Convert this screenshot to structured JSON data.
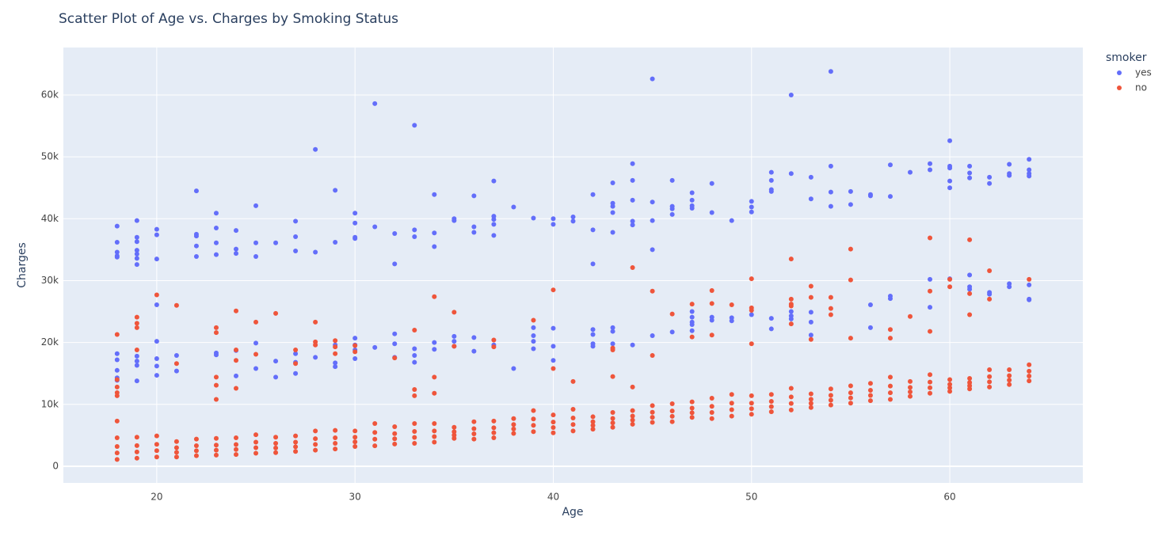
{
  "chart_data": {
    "type": "scatter",
    "title": "Scatter Plot of Age vs. Charges by Smoking Status",
    "x_label": "Age",
    "y_label": "Charges",
    "legend_title": "smoker",
    "legend_position": "right",
    "grid": true,
    "xlim": [
      15.29,
      66.71
    ],
    "xticks": [
      20,
      30,
      40,
      50,
      60
    ],
    "ylim": [
      -2690,
      67670
    ],
    "yticks": [
      0,
      {
        "value": 10000,
        "label": "10k"
      },
      {
        "value": 20000,
        "label": "20k"
      },
      {
        "value": 30000,
        "label": "30k"
      },
      {
        "value": 40000,
        "label": "40k"
      },
      {
        "value": 50000,
        "label": "50k"
      },
      {
        "value": 60000,
        "label": "60k"
      }
    ],
    "series": [
      {
        "name": "yes",
        "color": "#636efa",
        "x": [
          18,
          18,
          18,
          18,
          18,
          18,
          18,
          18,
          18,
          18,
          19,
          19,
          19,
          19,
          19,
          19,
          19,
          19,
          19,
          19,
          19,
          20,
          20,
          20,
          20,
          20,
          20,
          20,
          20,
          21,
          21,
          22,
          22,
          22,
          22,
          22,
          23,
          23,
          23,
          23,
          23,
          23,
          24,
          24,
          24,
          24,
          24,
          25,
          25,
          25,
          25,
          25,
          26,
          26,
          26,
          27,
          27,
          27,
          27,
          27,
          27,
          28,
          28,
          28,
          29,
          29,
          29,
          29,
          29,
          30,
          30,
          30,
          30,
          30,
          30,
          30,
          30,
          31,
          31,
          31,
          32,
          32,
          32,
          32,
          32,
          33,
          33,
          33,
          33,
          33,
          33,
          34,
          34,
          34,
          34,
          34,
          35,
          35,
          35,
          35,
          35,
          36,
          36,
          36,
          36,
          36,
          37,
          37,
          37,
          37,
          37,
          37,
          38,
          38,
          39,
          39,
          39,
          39,
          39,
          40,
          40,
          40,
          40,
          40,
          41,
          41,
          42,
          42,
          42,
          42,
          42,
          42,
          42,
          43,
          43,
          43,
          43,
          43,
          43,
          43,
          43,
          44,
          44,
          44,
          44,
          44,
          44,
          45,
          45,
          45,
          45,
          45,
          46,
          46,
          46,
          46,
          46,
          47,
          47,
          47,
          47,
          47,
          47,
          47,
          47,
          47,
          48,
          48,
          48,
          48,
          49,
          49,
          49,
          50,
          50,
          50,
          50,
          51,
          51,
          51,
          51,
          51,
          51,
          52,
          52,
          52,
          52,
          52,
          53,
          53,
          53,
          53,
          53,
          54,
          54,
          54,
          54,
          55,
          55,
          56,
          56,
          56,
          56,
          57,
          57,
          57,
          57,
          58,
          59,
          59,
          59,
          59,
          60,
          60,
          60,
          60,
          60,
          60,
          61,
          61,
          61,
          61,
          61,
          61,
          62,
          62,
          62,
          62,
          63,
          63,
          63,
          63,
          63,
          64,
          64,
          64,
          64,
          64,
          64,
          64
        ],
        "values": [
          38800,
          36200,
          34600,
          34000,
          33800,
          18200,
          17200,
          15500,
          14300,
          13900,
          39700,
          37000,
          36300,
          34900,
          34300,
          33600,
          32600,
          17800,
          17000,
          16300,
          13800,
          38300,
          37400,
          33500,
          26100,
          20200,
          17400,
          16200,
          14700,
          17900,
          15400,
          44500,
          37500,
          37200,
          35600,
          33900,
          40900,
          38500,
          36100,
          34200,
          18300,
          18000,
          38100,
          35100,
          34400,
          18700,
          14600,
          42100,
          36100,
          33900,
          19900,
          15800,
          36100,
          17000,
          14400,
          39600,
          37100,
          34800,
          18200,
          16800,
          15000,
          51200,
          34600,
          17600,
          44600,
          36200,
          19600,
          16700,
          16100,
          40900,
          39300,
          37000,
          36800,
          20700,
          19600,
          18800,
          17400,
          58600,
          38700,
          19200,
          37600,
          32700,
          21400,
          19800,
          17600,
          55100,
          38200,
          37100,
          19000,
          17900,
          16800,
          43900,
          37700,
          35500,
          20000,
          18900,
          40000,
          39700,
          21000,
          20200,
          19400,
          43700,
          38700,
          37800,
          20800,
          18600,
          46100,
          40400,
          39900,
          39100,
          37300,
          19600,
          41900,
          15800,
          40100,
          22400,
          21100,
          20200,
          19000,
          40000,
          39100,
          22300,
          19400,
          17100,
          40300,
          39600,
          43900,
          38200,
          32700,
          22100,
          21300,
          19800,
          19400,
          45800,
          42500,
          42000,
          41000,
          37800,
          22400,
          21800,
          19800,
          48900,
          46200,
          43000,
          39600,
          39000,
          19600,
          62600,
          42700,
          39700,
          35000,
          21100,
          46200,
          42000,
          41600,
          40700,
          21700,
          44200,
          43000,
          42100,
          41700,
          25000,
          24100,
          23300,
          22900,
          21900,
          45700,
          41000,
          24100,
          23600,
          39700,
          24000,
          23500,
          42800,
          41900,
          41100,
          24500,
          47500,
          46200,
          44700,
          44400,
          23900,
          22200,
          60000,
          47300,
          25000,
          24300,
          23800,
          46700,
          43200,
          24900,
          23300,
          21200,
          63800,
          48500,
          44300,
          42000,
          44400,
          42300,
          43900,
          43700,
          26100,
          22400,
          48700,
          43600,
          27500,
          27100,
          47500,
          48900,
          47900,
          30200,
          25700,
          52600,
          48500,
          48200,
          46100,
          45000,
          30300,
          48500,
          47400,
          46600,
          30900,
          29000,
          28600,
          46700,
          45700,
          28100,
          27800,
          48800,
          47300,
          47000,
          29500,
          29000,
          49600,
          47900,
          47300,
          46900,
          29300,
          27000,
          26900
        ]
      },
      {
        "name": "no",
        "color": "#ef553b",
        "x": [
          18,
          18,
          18,
          18,
          18,
          18,
          18,
          18,
          18,
          18,
          19,
          19,
          19,
          19,
          19,
          19,
          19,
          19,
          20,
          20,
          20,
          20,
          20,
          21,
          21,
          21,
          21,
          21,
          21,
          22,
          22,
          22,
          22,
          23,
          23,
          23,
          23,
          23,
          23,
          23,
          23,
          23,
          24,
          24,
          24,
          24,
          24,
          24,
          24,
          24,
          25,
          25,
          25,
          25,
          25,
          25,
          26,
          26,
          26,
          26,
          26,
          27,
          27,
          27,
          27,
          27,
          27,
          28,
          28,
          28,
          28,
          28,
          28,
          28,
          29,
          29,
          29,
          29,
          29,
          29,
          29,
          30,
          30,
          30,
          30,
          30,
          30,
          31,
          31,
          31,
          31,
          32,
          32,
          32,
          32,
          32,
          33,
          33,
          33,
          33,
          33,
          33,
          33,
          34,
          34,
          34,
          34,
          34,
          34,
          34,
          35,
          35,
          35,
          35,
          35,
          35,
          36,
          36,
          36,
          36,
          37,
          37,
          37,
          37,
          37,
          37,
          38,
          38,
          38,
          38,
          39,
          39,
          39,
          39,
          39,
          40,
          40,
          40,
          40,
          40,
          40,
          41,
          41,
          41,
          41,
          41,
          42,
          42,
          42,
          42,
          43,
          43,
          43,
          43,
          43,
          43,
          43,
          44,
          44,
          44,
          44,
          44,
          44,
          45,
          45,
          45,
          45,
          45,
          45,
          46,
          46,
          46,
          46,
          46,
          47,
          47,
          47,
          47,
          47,
          47,
          48,
          48,
          48,
          48,
          48,
          48,
          48,
          49,
          49,
          49,
          49,
          49,
          50,
          50,
          50,
          50,
          50,
          50,
          50,
          50,
          51,
          51,
          51,
          51,
          52,
          52,
          52,
          52,
          52,
          52,
          52,
          52,
          52,
          53,
          53,
          53,
          53,
          53,
          53,
          53,
          54,
          54,
          54,
          54,
          54,
          54,
          54,
          55,
          55,
          55,
          55,
          55,
          55,
          55,
          56,
          56,
          56,
          56,
          57,
          57,
          57,
          57,
          57,
          57,
          58,
          58,
          58,
          58,
          58,
          59,
          59,
          59,
          59,
          59,
          59,
          59,
          60,
          60,
          60,
          60,
          60,
          60,
          61,
          61,
          61,
          61,
          61,
          61,
          61,
          62,
          62,
          62,
          62,
          62,
          62,
          63,
          63,
          63,
          63,
          64,
          64,
          64,
          64,
          64
        ],
        "values": [
          1100,
          2150,
          3200,
          4600,
          7300,
          21300,
          14000,
          12800,
          11900,
          11400,
          1300,
          2320,
          3340,
          4700,
          24100,
          23100,
          22400,
          18800,
          1500,
          2520,
          3540,
          4900,
          27700,
          1500,
          2250,
          3000,
          4000,
          26000,
          16600,
          1700,
          2510,
          3320,
          4400,
          1800,
          2610,
          3420,
          4500,
          22400,
          21600,
          14400,
          13100,
          10800,
          1900,
          2710,
          3520,
          4600,
          25100,
          18800,
          17100,
          12600,
          2100,
          3000,
          3900,
          5100,
          23300,
          18100,
          2200,
          2950,
          3700,
          4700,
          24700,
          2400,
          3150,
          3900,
          4900,
          18800,
          16600,
          2600,
          3530,
          4460,
          5700,
          23300,
          20100,
          19600,
          2800,
          3700,
          4600,
          5800,
          20300,
          19300,
          18200,
          3200,
          3950,
          4700,
          5700,
          19500,
          18500,
          3300,
          4380,
          5460,
          6900,
          3600,
          4440,
          5280,
          6400,
          17500,
          3700,
          4660,
          5620,
          6900,
          22000,
          12400,
          11400,
          3900,
          4800,
          5700,
          6900,
          27400,
          14400,
          11800,
          4500,
          5040,
          5580,
          6300,
          24900,
          19400,
          4400,
          5240,
          6080,
          7200,
          4600,
          5410,
          6220,
          7300,
          20400,
          19300,
          5300,
          6020,
          6740,
          7700,
          5600,
          6620,
          7640,
          9000,
          23600,
          5400,
          6270,
          7140,
          8300,
          28500,
          15800,
          5700,
          6750,
          7800,
          9200,
          13700,
          6000,
          6600,
          7200,
          8000,
          6300,
          7020,
          7740,
          8700,
          19100,
          18800,
          14500,
          6800,
          7460,
          8120,
          9000,
          32100,
          12800,
          7100,
          7910,
          8720,
          9800,
          28300,
          17900,
          7200,
          8070,
          8940,
          10100,
          24600,
          7900,
          8650,
          9400,
          10400,
          26200,
          20900,
          7700,
          8690,
          9680,
          11000,
          28400,
          26300,
          21200,
          8100,
          9150,
          10200,
          11600,
          26100,
          8400,
          9300,
          10200,
          11400,
          30300,
          25600,
          25200,
          19800,
          8800,
          9640,
          10480,
          11600,
          9100,
          10150,
          11200,
          12600,
          33500,
          27000,
          26200,
          25900,
          23000,
          9500,
          10160,
          10820,
          11700,
          29100,
          27300,
          20500,
          9900,
          10680,
          11460,
          12500,
          27300,
          25500,
          24500,
          10200,
          11040,
          11880,
          13000,
          35100,
          30100,
          20700,
          10600,
          11440,
          12280,
          13400,
          10800,
          11880,
          12960,
          14400,
          22100,
          20700,
          11300,
          12020,
          12740,
          13700,
          24200,
          11800,
          12700,
          13600,
          14800,
          36900,
          28300,
          21800,
          12100,
          12670,
          13240,
          14000,
          30200,
          29000,
          12500,
          13010,
          13520,
          14200,
          36600,
          27900,
          24500,
          12800,
          13640,
          14480,
          15600,
          31600,
          27000,
          13200,
          13920,
          14640,
          15600,
          13800,
          14580,
          15360,
          16400,
          30200
        ]
      }
    ]
  }
}
